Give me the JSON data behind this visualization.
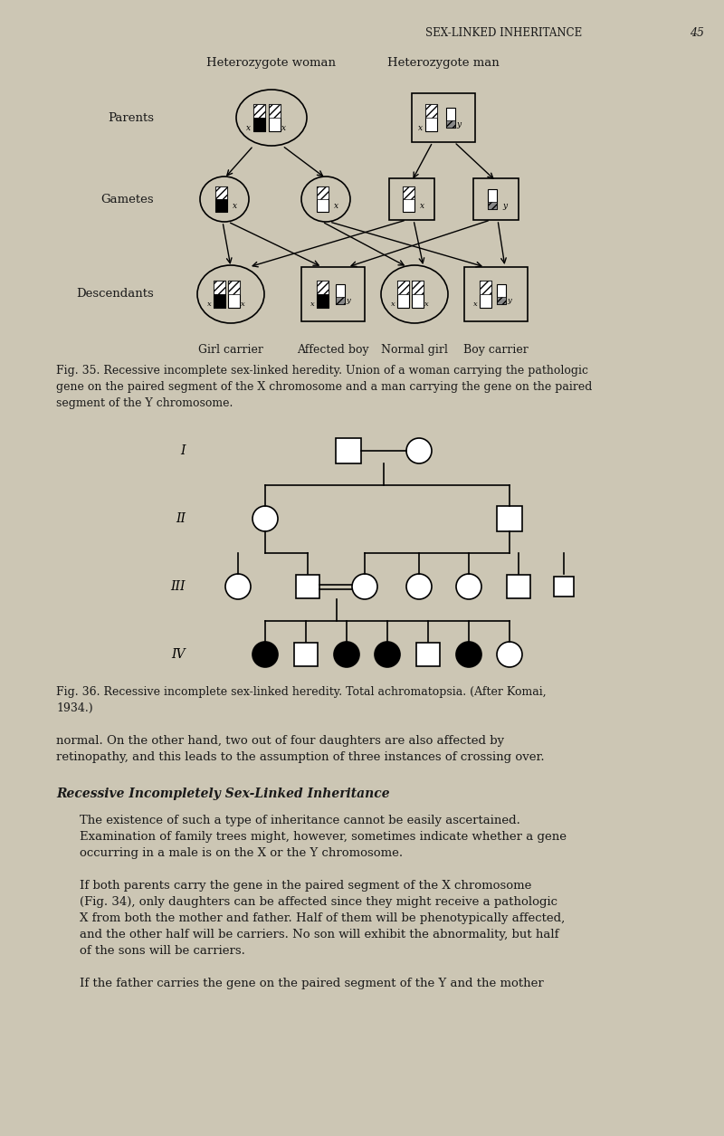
{
  "bg_color": "#ccc6b4",
  "page_title": "SEX-LINKED INHERITANCE",
  "page_number": "45",
  "fig35_caption": "Fig. 35. Recessive incomplete sex-linked heredity. Union of a woman carrying the pathologic\ngene on the paired segment of the X chromosome and a man carrying the gene on the paired\nsegment of the Y chromosome.",
  "fig36_caption": "Fig. 36. Recessive incomplete sex-linked heredity. Total achromatopsia. (After Komai,\n1934.)",
  "section_title": "Recessive Incompletely Sex-Linked Inheritance",
  "body_text_1": "normal. On the other hand, two out of four daughters are also affected by\nretinopathy, and this leads to the assumption of three instances of crossing over.",
  "body_text_2": "The existence of such a type of inheritance cannot be easily ascertained.\nExamination of family trees might, however, sometimes indicate whether a gene\noccurring in a male is on the X or the Y chromosome.",
  "body_text_3": "If both parents carry the gene in the paired segment of the X chromosome\n(Fig. 34), only daughters can be affected since they might receive a pathologic\nX from both the mother and father. Half of them will be phenotypically affected,\nand the other half will be carriers. No son will exhibit the abnormality, but half\nof the sons will be carriers.",
  "body_text_4": "If the father carries the gene on the paired segment of the Y and the mother"
}
